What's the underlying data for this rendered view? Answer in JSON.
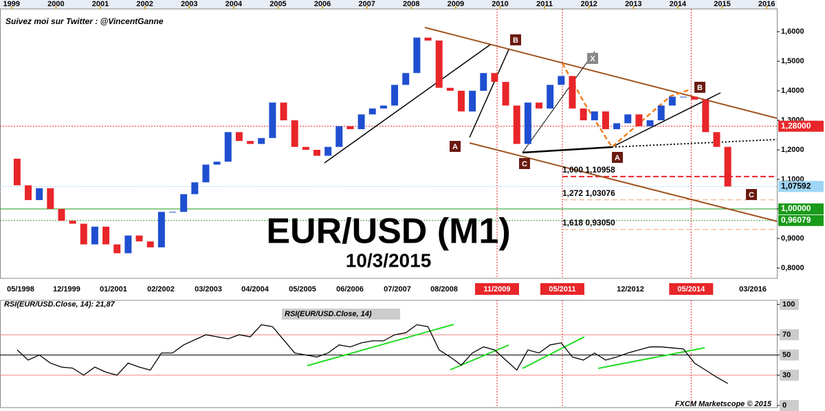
{
  "chart_data": [
    {
      "type": "candlestick",
      "note": "Suivez moi sur Twitter : @VincentGanne",
      "title": "EUR/USD (M1)",
      "subtitle": "10/3/2015",
      "x": [
        "03/1999",
        "06/1999",
        "09/1999",
        "12/1999",
        "03/2000",
        "06/2000",
        "09/2000",
        "12/2000",
        "03/2001",
        "06/2001",
        "09/2001",
        "12/2001",
        "03/2002",
        "06/2002",
        "09/2002",
        "12/2002",
        "03/2003",
        "06/2003",
        "09/2003",
        "12/2003",
        "03/2004",
        "06/2004",
        "09/2004",
        "12/2004",
        "03/2005",
        "06/2005",
        "09/2005",
        "12/2005",
        "03/2006",
        "06/2006",
        "09/2006",
        "12/2006",
        "03/2007",
        "06/2007",
        "09/2007",
        "12/2007",
        "03/2008",
        "06/2008",
        "09/2008",
        "12/2008",
        "03/2009",
        "06/2009",
        "09/2009",
        "12/2009",
        "03/2010",
        "06/2010",
        "09/2010",
        "12/2010",
        "03/2011",
        "06/2011",
        "09/2011",
        "12/2011",
        "03/2012",
        "06/2012",
        "09/2012",
        "12/2012",
        "03/2013",
        "06/2013",
        "09/2013",
        "12/2013",
        "03/2014",
        "06/2014",
        "09/2014",
        "12/2014",
        "03/2015"
      ],
      "open": [
        1.17,
        1.08,
        1.03,
        1.07,
        1.0,
        0.96,
        0.95,
        0.88,
        0.94,
        0.88,
        0.85,
        0.91,
        0.89,
        0.87,
        0.99,
        0.99,
        1.05,
        1.09,
        1.15,
        1.16,
        1.26,
        1.23,
        1.22,
        1.24,
        1.36,
        1.3,
        1.21,
        1.2,
        1.18,
        1.21,
        1.28,
        1.27,
        1.32,
        1.34,
        1.35,
        1.42,
        1.46,
        1.58,
        1.57,
        1.41,
        1.4,
        1.33,
        1.4,
        1.46,
        1.43,
        1.35,
        1.22,
        1.36,
        1.34,
        1.42,
        1.45,
        1.34,
        1.3,
        1.33,
        1.27,
        1.29,
        1.32,
        1.28,
        1.3,
        1.35,
        1.38,
        1.38,
        1.37,
        1.26,
        1.21
      ],
      "close": [
        1.08,
        1.03,
        1.07,
        1.0,
        0.96,
        0.95,
        0.88,
        0.94,
        0.88,
        0.85,
        0.91,
        0.89,
        0.87,
        0.99,
        0.99,
        1.05,
        1.09,
        1.15,
        1.16,
        1.26,
        1.23,
        1.22,
        1.24,
        1.36,
        1.3,
        1.21,
        1.2,
        1.18,
        1.21,
        1.28,
        1.27,
        1.32,
        1.34,
        1.35,
        1.42,
        1.46,
        1.58,
        1.57,
        1.41,
        1.4,
        1.33,
        1.4,
        1.46,
        1.43,
        1.35,
        1.22,
        1.36,
        1.34,
        1.42,
        1.45,
        1.34,
        1.3,
        1.33,
        1.27,
        1.29,
        1.32,
        1.28,
        1.3,
        1.35,
        1.38,
        1.38,
        1.37,
        1.26,
        1.21,
        1.076
      ],
      "up_color": "#1f4fd0",
      "down_color": "#e8262a",
      "xlim": [
        1998.74,
        2016.23
      ],
      "xticks": [
        1999,
        2000,
        2001,
        2002,
        2003,
        2004,
        2005,
        2006,
        2007,
        2008,
        2009,
        2010,
        2011,
        2012,
        2013,
        2014,
        2015,
        2016
      ],
      "ylim": [
        0.765,
        1.677
      ],
      "yticks": [
        {
          "value": 0.8,
          "label": "0,8000"
        },
        {
          "value": 0.9,
          "label": "0,9000"
        },
        {
          "value": 1.0,
          "label": "1,0000"
        },
        {
          "value": 1.1,
          "label": "1,1000"
        },
        {
          "value": 1.2,
          "label": "1,2000"
        },
        {
          "value": 1.3,
          "label": "1,3000"
        },
        {
          "value": 1.4,
          "label": "1,4000"
        },
        {
          "value": 1.5,
          "label": "1,5000"
        },
        {
          "value": 1.6,
          "label": "1,6000"
        }
      ],
      "date_labels": [
        "05/1998",
        "12/1999",
        "01/2001",
        "02/2002",
        "03/2003",
        "04/2004",
        "05/2005",
        "06/2006",
        "07/2007",
        "08/2008",
        "12/2012",
        "03/2016"
      ],
      "date_markers": [
        {
          "value": 2009.93,
          "label": "11/2009"
        },
        {
          "value": 2011.4,
          "label": "05/2011"
        },
        {
          "value": 2014.3,
          "label": "05/2014"
        }
      ],
      "levels": [
        {
          "value": 1.10958,
          "label": "1,000 1,10958",
          "color": "#e8262a"
        },
        {
          "value": 1.03076,
          "label": "1,272 1,03076",
          "color": "#f4a070"
        },
        {
          "value": 0.9305,
          "label": "1,618 0,93050",
          "color": "#f4a070"
        }
      ],
      "price_tags": [
        {
          "value": 1.28,
          "label": "1,28000",
          "color": "#e8262a"
        },
        {
          "value": 1.07592,
          "label": "1,07592",
          "color": "#9fd6f5"
        },
        {
          "value": 1.0,
          "label": "1,00000",
          "color": "#1a9a1a"
        },
        {
          "value": 0.96079,
          "label": "0,96079",
          "color": "#1a9a1a"
        }
      ],
      "wave_labels": [
        "A",
        "B",
        "X",
        "B",
        "A",
        "C",
        "C"
      ],
      "watermark": "FXCM Marketscope © 2015"
    },
    {
      "type": "line",
      "title": "RSI(EUR/USD.Close, 14): 21,87",
      "label": "RSI(EUR/USD.Close, 14)",
      "color": "#000000",
      "values": [
        55,
        45,
        50,
        42,
        38,
        37,
        30,
        38,
        33,
        30,
        42,
        38,
        35,
        52,
        52,
        60,
        65,
        70,
        68,
        66,
        70,
        68,
        80,
        78,
        65,
        52,
        50,
        48,
        52,
        60,
        58,
        62,
        64,
        64,
        70,
        72,
        80,
        78,
        55,
        48,
        40,
        52,
        58,
        55,
        45,
        35,
        55,
        52,
        60,
        62,
        48,
        45,
        52,
        45,
        48,
        52,
        55,
        58,
        58,
        57,
        56,
        42,
        35,
        28,
        21.87
      ],
      "ylim": [
        0,
        100
      ],
      "yticks": [
        0,
        30,
        50,
        70,
        100
      ],
      "reference_lines": [
        {
          "value": 70,
          "color": "#f08080"
        },
        {
          "value": 50,
          "color": "#000000"
        },
        {
          "value": 30,
          "color": "#f08080"
        }
      ]
    }
  ]
}
